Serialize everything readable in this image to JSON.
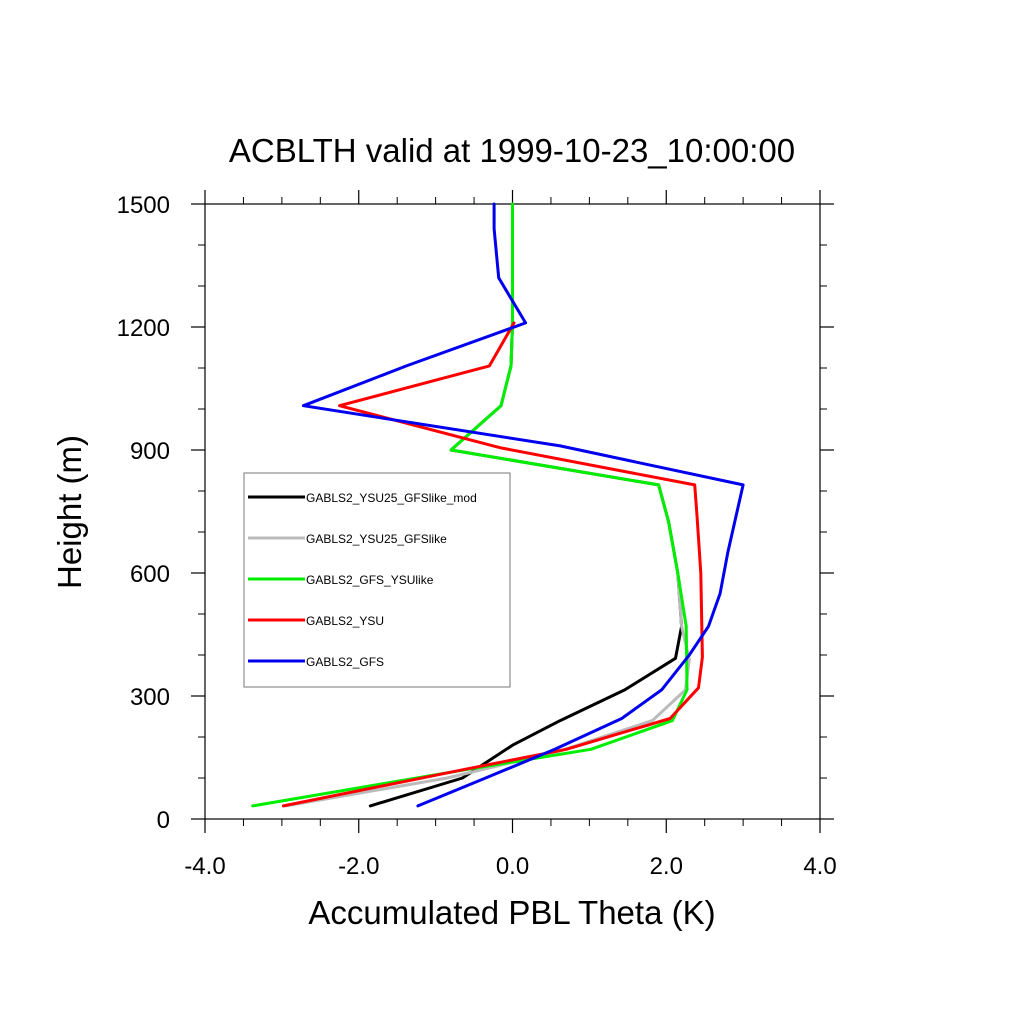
{
  "chart_data": {
    "type": "line",
    "title": "ACBLTH valid at 1999-10-23_10:00:00",
    "xlabel": "Accumulated PBL Theta (K)",
    "ylabel": "Height (m)",
    "xlim": [
      -4.0,
      4.0
    ],
    "ylim": [
      0,
      1500
    ],
    "x_ticks": [
      -4.0,
      -2.0,
      0.0,
      2.0,
      4.0
    ],
    "x_tick_labels": [
      "-4.0",
      "-2.0",
      "0.0",
      "2.0",
      "4.0"
    ],
    "y_ticks": [
      0,
      300,
      600,
      900,
      1200,
      1500
    ],
    "y_tick_labels": [
      "0",
      "300",
      "600",
      "900",
      "1200",
      "1500"
    ],
    "grid": false,
    "legend_position": "center-left",
    "series": [
      {
        "name": "GABLS2_YSU25_GFSlike_mod",
        "color": "#000000",
        "points": [
          [
            -1.85,
            32
          ],
          [
            -0.65,
            100
          ],
          [
            0.0,
            180
          ],
          [
            0.62,
            240
          ],
          [
            1.46,
            315
          ],
          [
            2.12,
            392
          ],
          [
            2.2,
            470
          ],
          [
            2.15,
            600
          ],
          [
            2.03,
            725
          ],
          [
            1.9,
            815
          ],
          [
            -0.8,
            900
          ],
          [
            -0.15,
            1008
          ],
          [
            -0.02,
            1105
          ],
          [
            0.0,
            1210
          ],
          [
            0.0,
            1500
          ]
        ]
      },
      {
        "name": "GABLS2_YSU25_GFSlike",
        "color": "#bbbbbb",
        "points": [
          [
            -2.95,
            32
          ],
          [
            -0.85,
            100
          ],
          [
            0.6,
            165
          ],
          [
            1.82,
            240
          ],
          [
            2.25,
            315
          ],
          [
            2.3,
            390
          ],
          [
            2.2,
            470
          ],
          [
            2.15,
            600
          ],
          [
            2.03,
            725
          ],
          [
            1.9,
            815
          ],
          [
            -0.8,
            900
          ],
          [
            -0.15,
            1008
          ],
          [
            -0.02,
            1105
          ],
          [
            0.0,
            1210
          ],
          [
            0.0,
            1500
          ]
        ]
      },
      {
        "name": "GABLS2_GFS_YSUlike",
        "color": "#00ee00",
        "points": [
          [
            -3.38,
            32
          ],
          [
            -0.62,
            120
          ],
          [
            1.02,
            170
          ],
          [
            2.08,
            240
          ],
          [
            2.27,
            315
          ],
          [
            2.26,
            470
          ],
          [
            2.15,
            600
          ],
          [
            2.03,
            725
          ],
          [
            1.9,
            815
          ],
          [
            -0.8,
            900
          ],
          [
            -0.15,
            1008
          ],
          [
            -0.02,
            1105
          ],
          [
            0.0,
            1210
          ],
          [
            0.0,
            1500
          ]
        ]
      },
      {
        "name": "GABLS2_YSU",
        "color": "#ff0000",
        "points": [
          [
            -2.98,
            32
          ],
          [
            -0.65,
            120
          ],
          [
            0.7,
            170
          ],
          [
            2.05,
            245
          ],
          [
            2.42,
            320
          ],
          [
            2.47,
            395
          ],
          [
            2.45,
            600
          ],
          [
            2.4,
            740
          ],
          [
            2.37,
            815
          ],
          [
            -0.15,
            905
          ],
          [
            -2.25,
            1008
          ],
          [
            -0.3,
            1105
          ],
          [
            0.02,
            1210
          ]
        ]
      },
      {
        "name": "GABLS2_GFS",
        "color": "#0000ee",
        "points": [
          [
            -1.23,
            32
          ],
          [
            -0.35,
            100
          ],
          [
            0.55,
            170
          ],
          [
            1.42,
            245
          ],
          [
            1.94,
            315
          ],
          [
            2.3,
            400
          ],
          [
            2.55,
            470
          ],
          [
            2.7,
            550
          ],
          [
            2.8,
            650
          ],
          [
            3.0,
            815
          ],
          [
            0.62,
            910
          ],
          [
            -2.72,
            1008
          ],
          [
            -1.38,
            1105
          ],
          [
            0.17,
            1210
          ],
          [
            -0.18,
            1320
          ],
          [
            -0.24,
            1440
          ],
          [
            -0.24,
            1500
          ]
        ]
      }
    ]
  }
}
